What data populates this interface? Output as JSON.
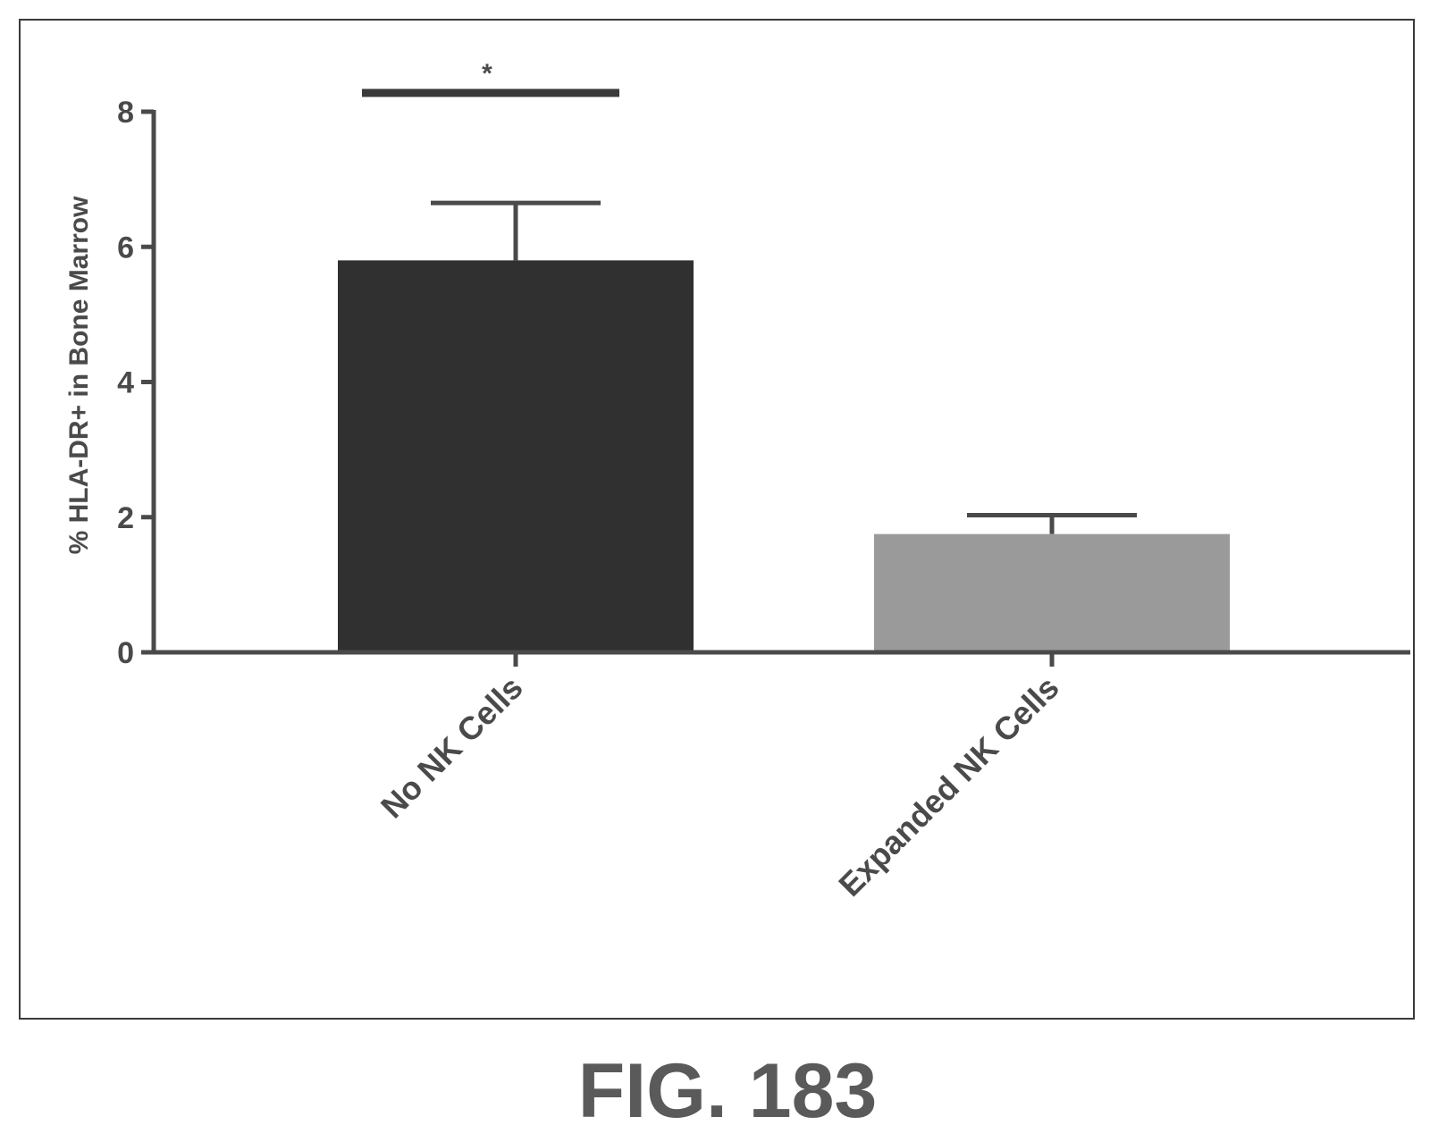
{
  "figure_label": "FIG. 183",
  "chart_data": {
    "type": "bar",
    "categories": [
      "No NK Cells",
      "Expanded NK Cells"
    ],
    "series": [
      {
        "values": [
          5.8,
          1.75
        ],
        "errors": [
          0.85,
          0.28
        ],
        "colors": [
          "#303030",
          "#9a9a9a"
        ]
      }
    ],
    "xlabel": "",
    "ylabel": "% HLA-DR+ in Bone Marrow",
    "ylim": [
      0,
      8
    ],
    "yticks": [
      0,
      2,
      4,
      6,
      8
    ],
    "significance": {
      "label": "*",
      "between": [
        "No NK Cells",
        "No NK Cells"
      ]
    },
    "grid": false,
    "legend": "none"
  }
}
